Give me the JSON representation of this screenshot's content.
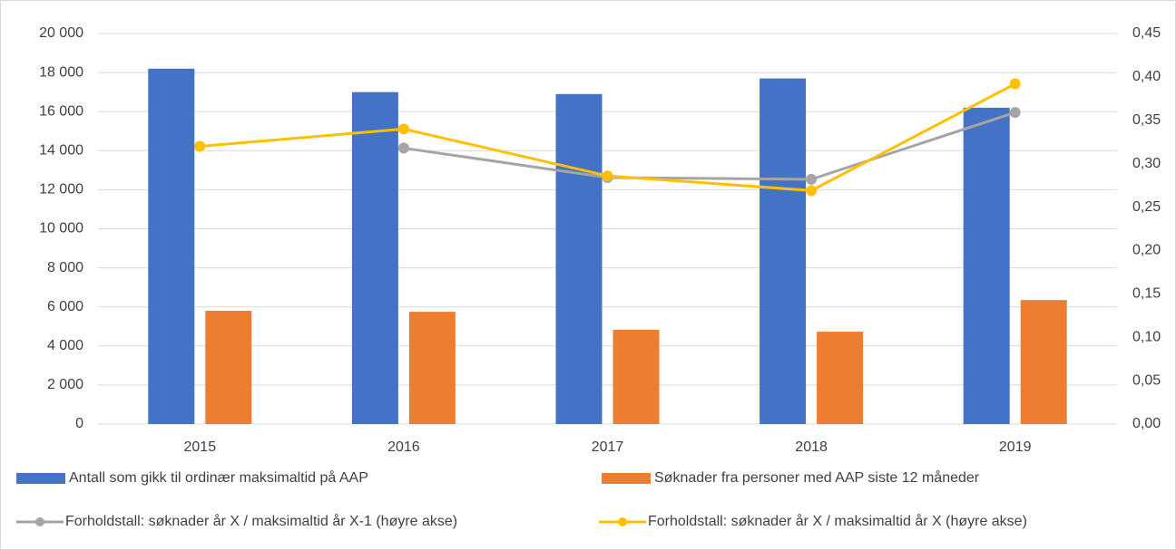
{
  "chart_data": {
    "type": "bar",
    "categories": [
      "2015",
      "2016",
      "2017",
      "2018",
      "2019"
    ],
    "series": [
      {
        "name": "Antall som gikk til ordinær maksimaltid på AAP",
        "type": "bar",
        "color": "#4472c4",
        "values": [
          18200,
          17000,
          16900,
          17700,
          16200
        ]
      },
      {
        "name": "Søknader fra personer med AAP siste 12 måneder",
        "type": "bar",
        "color": "#ed7d31",
        "values": [
          5800,
          5750,
          4830,
          4730,
          6350
        ]
      },
      {
        "name": "Forholdstall: søknader år X / maksimaltid år X-1 (høyre akse)",
        "type": "line",
        "axis": "y2",
        "color": "#a5a5a5",
        "values": [
          null,
          0.318,
          0.284,
          0.282,
          0.359
        ]
      },
      {
        "name": "Forholdstall: søknader år X / maksimaltid år X (høyre akse)",
        "type": "line",
        "axis": "y2",
        "color": "#ffc000",
        "values": [
          0.32,
          0.34,
          0.286,
          0.269,
          0.392
        ]
      }
    ],
    "ylim": [
      0,
      20000
    ],
    "yticks": [
      0,
      {
        "value": 2000,
        "label": "2 000"
      },
      {
        "value": 4000,
        "label": "4 000"
      },
      {
        "value": 6000,
        "label": "6 000"
      },
      {
        "value": 8000,
        "label": "8 000"
      },
      {
        "value": 10000,
        "label": "10 000"
      },
      {
        "value": 12000,
        "label": "12 000"
      },
      {
        "value": 14000,
        "label": "14 000"
      },
      {
        "value": 16000,
        "label": "16 000"
      },
      {
        "value": 18000,
        "label": "18 000"
      },
      {
        "value": 20000,
        "label": "20 000"
      }
    ],
    "y2lim": [
      0,
      0.45
    ],
    "y2ticks": [
      {
        "value": 0,
        "label": "0,00"
      },
      {
        "value": 0.05,
        "label": "0,05"
      },
      {
        "value": 0.1,
        "label": "0,10"
      },
      {
        "value": 0.15,
        "label": "0,15"
      },
      {
        "value": 0.2,
        "label": "0,20"
      },
      {
        "value": 0.25,
        "label": "0,25"
      },
      {
        "value": 0.3,
        "label": "0,30"
      },
      {
        "value": 0.35,
        "label": "0,35"
      },
      {
        "value": 0.4,
        "label": "0,40"
      },
      {
        "value": 0.45,
        "label": "0,45"
      }
    ],
    "grid": true
  }
}
